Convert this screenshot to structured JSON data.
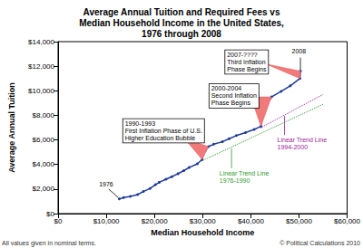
{
  "chart_data": {
    "type": "line",
    "title": "Average Annual Tuition and Required Fees vs\nMedian Household Income in the United States,\n1976 through 2008",
    "x_label": "Median Household Income",
    "y_label": "Average Annual Tuition",
    "x": [
      12700,
      13600,
      15000,
      16500,
      17700,
      19100,
      20200,
      21000,
      22400,
      23600,
      24900,
      26100,
      27200,
      28900,
      29900,
      30100,
      30600,
      31200,
      32300,
      34100,
      35500,
      37000,
      38900,
      40700,
      42100,
      42200,
      42400,
      43300,
      44300,
      46300,
      48200,
      50200,
      50300
    ],
    "values": [
      1200,
      1300,
      1400,
      1550,
      1800,
      2050,
      2350,
      2550,
      2800,
      3000,
      3250,
      3500,
      3750,
      4050,
      4400,
      4800,
      5150,
      5450,
      5650,
      5850,
      6100,
      6350,
      6600,
      6850,
      7100,
      7600,
      8150,
      8850,
      9500,
      9950,
      10400,
      11000,
      11600
    ],
    "color": "#1f3a93",
    "marker": "circle",
    "xlim": [
      0,
      60000
    ],
    "xticks": [
      {
        "value": 0,
        "label": "$0"
      },
      {
        "value": 10000,
        "label": "$10,000"
      },
      {
        "value": 20000,
        "label": "$20,000"
      },
      {
        "value": 30000,
        "label": "$30,000"
      },
      {
        "value": 40000,
        "label": "$40,000"
      },
      {
        "value": 50000,
        "label": "$50,000"
      },
      {
        "value": 60000,
        "label": "$60,000"
      }
    ],
    "ylim": [
      0,
      14000
    ],
    "yticks": [
      {
        "value": 0,
        "label": "$0"
      },
      {
        "value": 2000,
        "label": "$2,000"
      },
      {
        "value": 4000,
        "label": "$4,000"
      },
      {
        "value": 6000,
        "label": "$6,000"
      },
      {
        "value": 8000,
        "label": "$8,000"
      },
      {
        "value": 10000,
        "label": "$10,000"
      },
      {
        "value": 12000,
        "label": "$12,000"
      },
      {
        "value": 14000,
        "label": "$14,000"
      }
    ],
    "grid": false,
    "trend_lines": [
      {
        "color": "#2e9a2e",
        "line_style": "dotted",
        "x": [
          29900,
          55000
        ],
        "values": [
          4300,
          8900
        ]
      },
      {
        "color": "#992299",
        "line_style": "dotted",
        "x": [
          42100,
          55000
        ],
        "values": [
          7000,
          9700
        ]
      }
    ],
    "annotations": [
      {
        "text": "1976",
        "x": 8500,
        "y": 2700,
        "pointer": [
          [
            10500,
            2000
          ],
          [
            12500,
            1300
          ]
        ]
      },
      {
        "text": "2008",
        "x": 48500,
        "y": 13500,
        "pointer": [
          [
            50300,
            12700
          ],
          [
            50300,
            11700
          ]
        ]
      },
      {
        "text": "1990-1993\nFirst Inflation Phase of U.S.\nHigher Education Bubble",
        "x": 13500,
        "y": 7700,
        "wedge": [
          [
            26000,
            6200
          ],
          [
            29900,
            4400
          ],
          [
            31200,
            5450
          ]
        ]
      },
      {
        "text": "2000-2004\nSecond Inflation\nPhase Begins",
        "x": 31400,
        "y": 10540,
        "wedge": [
          [
            40000,
            9500
          ],
          [
            42100,
            7100
          ],
          [
            44300,
            9500
          ]
        ]
      },
      {
        "text": "2007-????\nThird Inflation\nPhase Begins",
        "x": 34700,
        "y": 13300,
        "wedge": [
          [
            43000,
            12200
          ],
          [
            50200,
            11000
          ],
          [
            50300,
            11600
          ]
        ]
      },
      {
        "text": "Linear Trend Line\n1976-1990",
        "x": 33500,
        "y": 3600,
        "color": "#2e9a2e",
        "pointer": [
          [
            36000,
            3700
          ],
          [
            36000,
            5300
          ]
        ]
      },
      {
        "text": "Linear Trend Line\n1994-2000",
        "x": 45500,
        "y": 6300,
        "color": "#992299",
        "pointer": [
          [
            47000,
            6400
          ],
          [
            47000,
            7950
          ]
        ]
      }
    ],
    "footnotes": [
      "All values given in nominal terms.",
      "© Political Calculations 2010"
    ]
  }
}
